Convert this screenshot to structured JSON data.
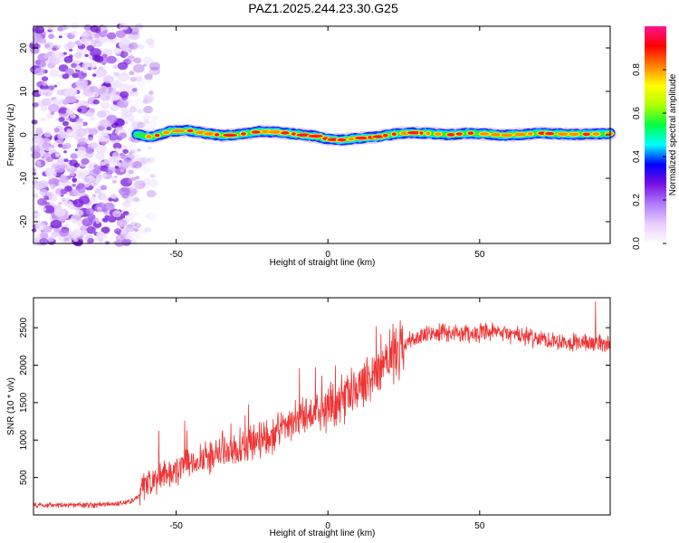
{
  "title": "PAZ1.2025.244.23.30.G25",
  "chart_data": [
    {
      "type": "heatmap",
      "name": "spectrogram",
      "xlabel": "Height of straight line (km)",
      "ylabel": "Frequency (Hz)",
      "xlim": [
        -97,
        93
      ],
      "ylim": [
        -25,
        25
      ],
      "xticks": [
        -50,
        0,
        50
      ],
      "yticks": [
        -20,
        -10,
        0,
        10,
        20
      ],
      "colorbar": {
        "label": "Normalized spectral amplitude",
        "range": [
          0,
          1
        ],
        "ticks": [
          0.0,
          0.2,
          0.4,
          0.6,
          0.8
        ],
        "tick_labels": [
          "0.0",
          "0.2",
          "0.4",
          "0.6",
          "0.8"
        ],
        "colormap": [
          "#ffffff",
          "#e9ccff",
          "#b07cff",
          "#7a10e0",
          "#0000ff",
          "#00ffff",
          "#00ff40",
          "#b0ff00",
          "#ffff00",
          "#ff8000",
          "#ff0000",
          "#ff1493"
        ]
      },
      "noise_region_x": [
        -97,
        -63
      ],
      "ridge": {
        "x": [
          -63,
          -58,
          -52,
          -46,
          -40,
          -34,
          -28,
          -22,
          -16,
          -10,
          -4,
          0,
          4,
          10,
          16,
          22,
          28,
          34,
          40,
          46,
          52,
          58,
          64,
          70,
          76,
          82,
          88,
          93
        ],
        "freq": [
          0.0,
          -0.5,
          0.8,
          1.0,
          0.3,
          -0.2,
          0.2,
          0.8,
          0.6,
          0.1,
          -0.3,
          -1.0,
          -1.2,
          -0.8,
          -0.5,
          0.2,
          0.5,
          0.3,
          0.0,
          0.4,
          0.2,
          -0.1,
          0.1,
          0.4,
          0.2,
          0.1,
          0.2,
          0.3
        ]
      }
    },
    {
      "type": "line",
      "name": "snr",
      "xlabel": "Height of straight line (km)",
      "ylabel": "SNR (10 * v/v)",
      "xlim": [
        -97,
        93
      ],
      "ylim": [
        0,
        2900
      ],
      "xticks": [
        -50,
        0,
        50
      ],
      "yticks": [
        500,
        1000,
        1500,
        2000,
        2500
      ],
      "color": "#ee3333",
      "trend": {
        "x": [
          -97,
          -80,
          -70,
          -65,
          -62,
          -60,
          -55,
          -50,
          -45,
          -40,
          -35,
          -30,
          -25,
          -20,
          -15,
          -10,
          -5,
          0,
          5,
          10,
          15,
          20,
          25,
          30,
          35,
          40,
          45,
          50,
          55,
          60,
          65,
          70,
          75,
          80,
          85,
          90,
          93
        ],
        "y": [
          130,
          130,
          150,
          180,
          260,
          400,
          520,
          600,
          720,
          760,
          800,
          880,
          970,
          1060,
          1160,
          1250,
          1340,
          1430,
          1540,
          1680,
          1880,
          2100,
          2280,
          2380,
          2420,
          2430,
          2430,
          2420,
          2430,
          2420,
          2380,
          2350,
          2330,
          2310,
          2300,
          2290,
          2280
        ]
      }
    }
  ]
}
